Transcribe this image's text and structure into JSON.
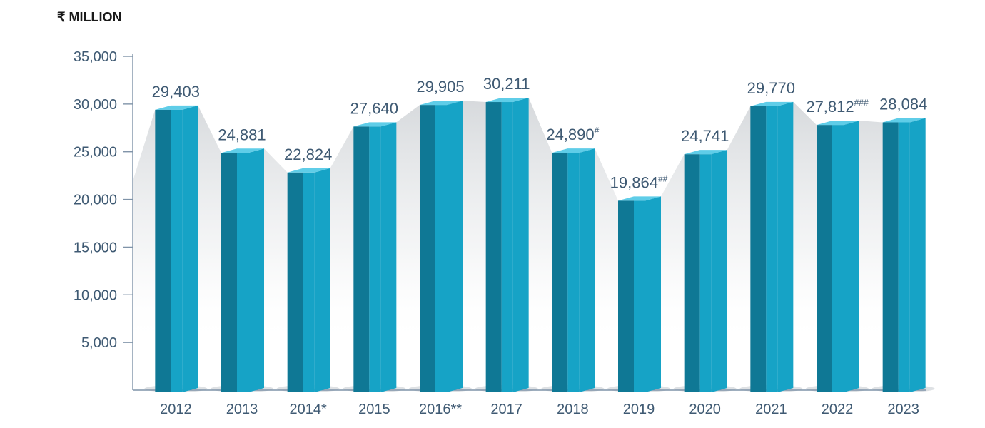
{
  "unit_label": "₹ MILLION",
  "colors": {
    "bar_front": "#16a3c6",
    "bar_side": "#0f7895",
    "bar_top": "#5fcde8",
    "axis": "#7f93a8",
    "text": "#3f5a73"
  },
  "chart_data": {
    "type": "bar",
    "title": "",
    "ylabel": "₹ MILLION",
    "xlabel": "",
    "categories": [
      "2012",
      "2013",
      "2014*",
      "2015",
      "2016**",
      "2017",
      "2018",
      "2019",
      "2020",
      "2021",
      "2022",
      "2023"
    ],
    "values": [
      29403,
      24881,
      22824,
      27640,
      29905,
      30211,
      24890,
      19864,
      24741,
      29770,
      27812,
      28084
    ],
    "data_labels": [
      {
        "text": "29,403",
        "sup": ""
      },
      {
        "text": "24,881",
        "sup": ""
      },
      {
        "text": "22,824",
        "sup": ""
      },
      {
        "text": "27,640",
        "sup": ""
      },
      {
        "text": "29,905",
        "sup": ""
      },
      {
        "text": "30,211",
        "sup": ""
      },
      {
        "text": "24,890",
        "sup": "#"
      },
      {
        "text": "19,864",
        "sup": "##"
      },
      {
        "text": "24,741",
        "sup": ""
      },
      {
        "text": "29,770",
        "sup": ""
      },
      {
        "text": "27,812",
        "sup": "###"
      },
      {
        "text": "28,084",
        "sup": ""
      }
    ],
    "ylim": [
      0,
      35000
    ],
    "yticks": [
      5000,
      10000,
      15000,
      20000,
      25000,
      30000,
      35000
    ],
    "ytick_labels": [
      "5,000",
      "10,000",
      "15,000",
      "20,000",
      "25,000",
      "30,000",
      "35,000"
    ],
    "grid": false,
    "legend": "none"
  }
}
